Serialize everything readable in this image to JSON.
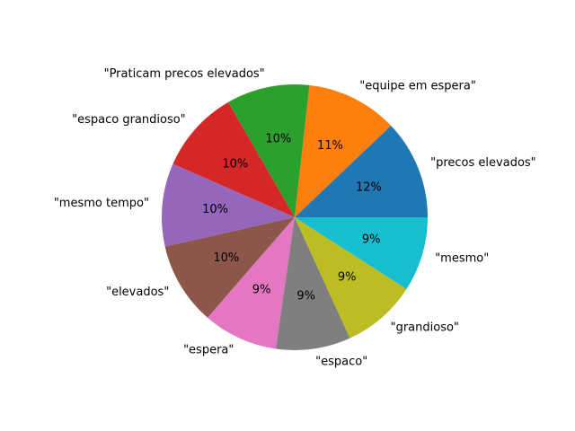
{
  "chart_data": {
    "type": "pie",
    "title": "",
    "start_angle_deg": 0,
    "direction": "counterclockwise",
    "legend": "none",
    "slices": [
      {
        "label": "\"precos elevados\"",
        "value": 12,
        "pct_label": "12%",
        "color": "#1f77b4"
      },
      {
        "label": "\"equipe em espera\"",
        "value": 11,
        "pct_label": "11%",
        "color": "#ff7f0e"
      },
      {
        "label": "\"Praticam precos elevados\"",
        "value": 10,
        "pct_label": "10%",
        "color": "#2ca02c"
      },
      {
        "label": "\"espaco grandioso\"",
        "value": 10,
        "pct_label": "10%",
        "color": "#d62728"
      },
      {
        "label": "\"mesmo tempo\"",
        "value": 10,
        "pct_label": "10%",
        "color": "#9467bd"
      },
      {
        "label": "\"elevados\"",
        "value": 10,
        "pct_label": "10%",
        "color": "#8c564b"
      },
      {
        "label": "\"espera\"",
        "value": 9,
        "pct_label": "9%",
        "color": "#e377c2"
      },
      {
        "label": "\"espaco\"",
        "value": 9,
        "pct_label": "9%",
        "color": "#7f7f7f"
      },
      {
        "label": "\"grandioso\"",
        "value": 9,
        "pct_label": "9%",
        "color": "#bcbd22"
      },
      {
        "label": "\"mesmo\"",
        "value": 9,
        "pct_label": "9%",
        "color": "#17becf"
      }
    ]
  }
}
